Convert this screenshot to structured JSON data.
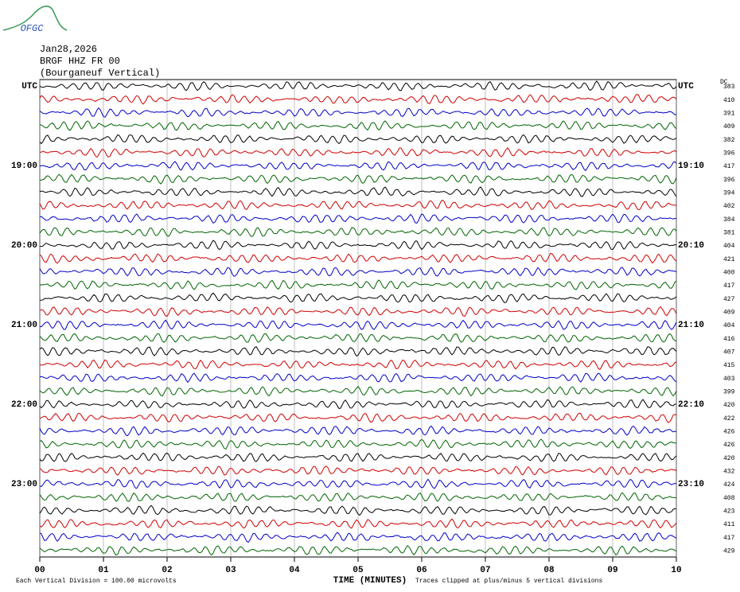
{
  "header": {
    "logo": "OFGC",
    "date": "Jan28,2026",
    "station": "BRGF HHZ FR 00",
    "location": "(Bourganeuf Vertical)"
  },
  "left_labels": [
    {
      "row": 0,
      "label": "UTC"
    },
    {
      "row": 6,
      "label": "19:00"
    },
    {
      "row": 12,
      "label": "20:00"
    },
    {
      "row": 18,
      "label": "21:00"
    },
    {
      "row": 24,
      "label": "22:00"
    },
    {
      "row": 30,
      "label": "23:00"
    }
  ],
  "right_labels": [
    {
      "row": 0,
      "label": "UTC"
    },
    {
      "row": 6,
      "label": "19:10"
    },
    {
      "row": 12,
      "label": "20:10"
    },
    {
      "row": 18,
      "label": "21:10"
    },
    {
      "row": 24,
      "label": "22:10"
    },
    {
      "row": 30,
      "label": "23:10"
    }
  ],
  "dc_header": "DC",
  "dc_values": [
    383,
    410,
    391,
    409,
    382,
    396,
    417,
    396,
    394,
    402,
    384,
    381,
    404,
    421,
    400,
    417,
    427,
    409,
    404,
    416,
    407,
    415,
    403,
    399,
    420,
    422,
    426,
    426,
    420,
    432,
    424,
    408,
    423,
    411,
    417,
    429
  ],
  "trace_colors": [
    "#000000",
    "#d00000",
    "#0000c8",
    "#006400"
  ],
  "x_ticks": [
    "00",
    "01",
    "02",
    "03",
    "04",
    "05",
    "06",
    "07",
    "08",
    "09",
    "10"
  ],
  "x_label": "TIME (MINUTES)",
  "footer": {
    "division": "Each Vertical Division =  100.00 microvolts",
    "clip": "Traces clipped at plus/minus 5 vertical divisions"
  }
}
